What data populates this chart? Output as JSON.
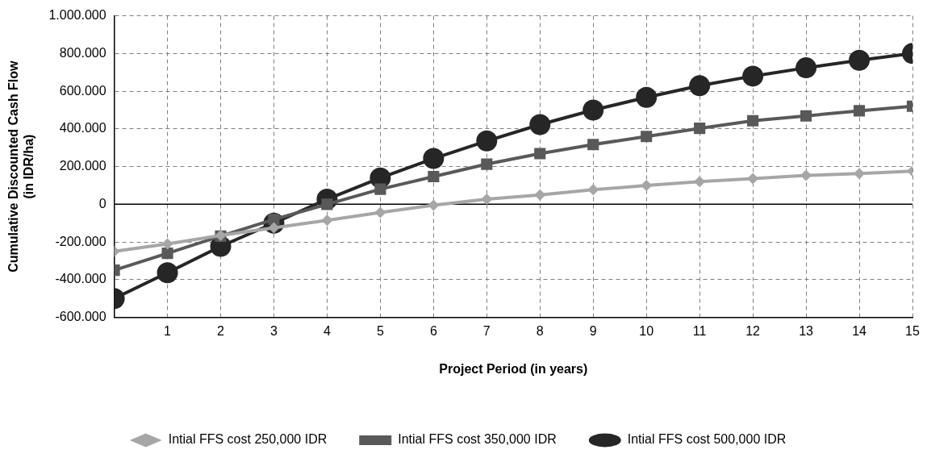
{
  "chart_data": {
    "type": "line",
    "xlabel": "Project Period (in years)",
    "ylabel": "Cumulative Discounted Cash Flow\n(in IDR/ha)",
    "x": [
      0,
      1,
      2,
      3,
      4,
      5,
      6,
      7,
      8,
      9,
      10,
      11,
      12,
      13,
      14,
      15
    ],
    "series": [
      {
        "name": "Intial FFS cost 250,000 IDR",
        "color": "#a6a6a6",
        "marker": "diamond",
        "values": [
          -250000,
          -210000,
          -165000,
          -125000,
          -85000,
          -43000,
          -5000,
          27000,
          50000,
          77000,
          100000,
          120000,
          136000,
          153000,
          163000,
          176000
        ]
      },
      {
        "name": "Intial FFS cost 350,000 IDR",
        "color": "#595959",
        "marker": "square",
        "values": [
          -350000,
          -260000,
          -169000,
          -80000,
          0,
          80000,
          147000,
          213000,
          269000,
          317000,
          360000,
          403000,
          443000,
          469000,
          496000,
          520000
        ]
      },
      {
        "name": "Intial FFS cost 500,000 IDR",
        "color": "#262626",
        "marker": "circle",
        "values": [
          -500000,
          -363000,
          -223000,
          -100000,
          27000,
          140000,
          243000,
          336000,
          423000,
          500000,
          567000,
          629000,
          680000,
          724000,
          764000,
          800000
        ]
      }
    ],
    "xlim": [
      0,
      15
    ],
    "xticks": [
      {
        "value": 0,
        "label": null
      },
      1,
      2,
      3,
      4,
      5,
      6,
      7,
      8,
      9,
      10,
      11,
      12,
      13,
      14,
      15
    ],
    "ylim": [
      -600000,
      1000000
    ],
    "yticks": [
      {
        "value": -600000,
        "label": "-600.000"
      },
      {
        "value": -400000,
        "label": "-400.000"
      },
      {
        "value": -200000,
        "label": "-200.000"
      },
      0,
      {
        "value": 200000,
        "label": "200.000"
      },
      {
        "value": 400000,
        "label": "400.000"
      },
      {
        "value": 600000,
        "label": "600.000"
      },
      {
        "value": 800000,
        "label": "800.000"
      },
      {
        "value": 1000000,
        "label": "1.000.000"
      }
    ],
    "ref_lines": [
      {
        "axis": "y",
        "value": 0,
        "color": "#000000",
        "line_style": "solid"
      }
    ],
    "grid": true,
    "legend": "bottom",
    "line_style": "solid"
  }
}
